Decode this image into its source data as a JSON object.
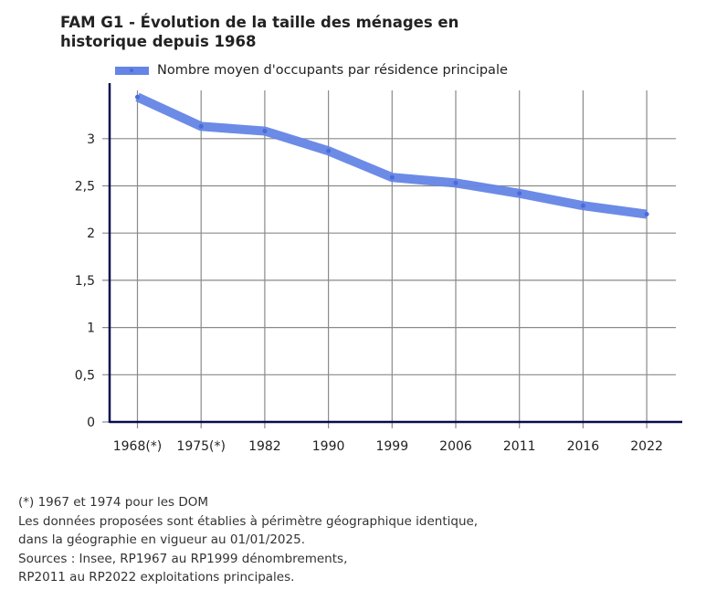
{
  "chart_data": {
    "type": "line",
    "title": "FAM G1 - Évolution de la taille des ménages en historique depuis 1968",
    "title_lines": [
      "FAM G1 - Évolution de la taille des ménages en",
      "historique depuis 1968"
    ],
    "xlabel": "",
    "ylabel": "",
    "categories": [
      "1968(*)",
      "1975(*)",
      "1982",
      "1990",
      "1999",
      "2006",
      "2011",
      "2016",
      "2022"
    ],
    "series": [
      {
        "name": "Nombre moyen d'occupants par résidence principale",
        "color": "#6485e6",
        "values": [
          3.44,
          3.13,
          3.08,
          2.87,
          2.59,
          2.53,
          2.42,
          2.29,
          2.2
        ]
      }
    ],
    "ylim": [
      0,
      3.5
    ],
    "yticks": [
      0,
      0.5,
      1,
      1.5,
      2,
      2.5,
      3
    ],
    "ytick_labels": [
      "0",
      "0,5",
      "1",
      "1,5",
      "2",
      "2,5",
      "3"
    ],
    "grid": true,
    "legend_position": "top"
  },
  "legend": {
    "label": "Nombre moyen d'occupants par résidence principale"
  },
  "footer": {
    "lines": [
      "(*) 1967 et 1974 pour les DOM",
      "Les données proposées sont établies à périmètre géographique identique,",
      "dans la géographie en vigueur au 01/01/2025.",
      "Sources : Insee, RP1967 au RP1999 dénombrements,",
      "RP2011 au RP2022 exploitations principales."
    ]
  }
}
